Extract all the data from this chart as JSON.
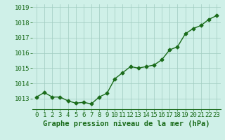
{
  "x": [
    0,
    1,
    2,
    3,
    4,
    5,
    6,
    7,
    8,
    9,
    10,
    11,
    12,
    13,
    14,
    15,
    16,
    17,
    18,
    19,
    20,
    21,
    22,
    23
  ],
  "y": [
    1013.1,
    1013.4,
    1013.1,
    1013.1,
    1012.85,
    1012.7,
    1012.75,
    1012.65,
    1013.1,
    1013.35,
    1014.3,
    1014.7,
    1015.1,
    1015.0,
    1015.1,
    1015.2,
    1015.55,
    1016.2,
    1016.4,
    1017.25,
    1017.6,
    1017.8,
    1018.2,
    1018.45
  ],
  "line_color": "#1a6b1a",
  "marker": "D",
  "marker_size": 2.5,
  "line_width": 1.0,
  "bg_color": "#cff0e8",
  "grid_color": "#a0ccc0",
  "xlabel": "Graphe pression niveau de la mer (hPa)",
  "xlabel_color": "#1a6b1a",
  "xlabel_fontsize": 7.5,
  "tick_color": "#1a6b1a",
  "tick_fontsize": 6.5,
  "ylim": [
    1012.3,
    1019.2
  ],
  "yticks": [
    1013,
    1014,
    1015,
    1016,
    1017,
    1018,
    1019
  ],
  "xlim": [
    -0.5,
    23.5
  ],
  "xticks": [
    0,
    1,
    2,
    3,
    4,
    5,
    6,
    7,
    8,
    9,
    10,
    11,
    12,
    13,
    14,
    15,
    16,
    17,
    18,
    19,
    20,
    21,
    22,
    23
  ]
}
